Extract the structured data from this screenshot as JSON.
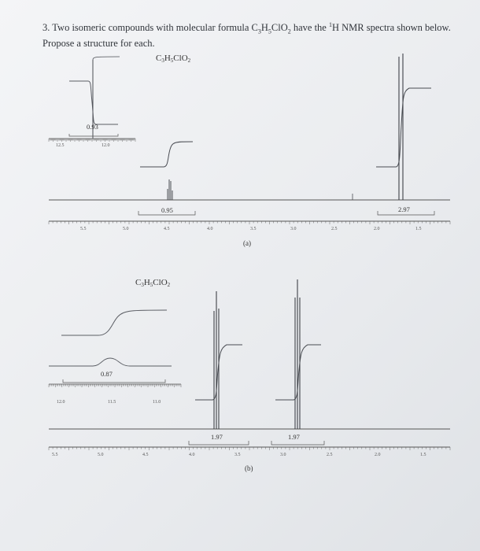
{
  "question": {
    "number": "3.",
    "text_part1": "Two isomeric compounds with molecular formula C",
    "sub1": "3",
    "text_part2": "H",
    "sub2": "5",
    "text_part3": "ClO",
    "sub3": "2",
    "text_part4": " have the ",
    "sup1": "1",
    "text_part5": "H NMR spectra shown below. Propose a structure for each."
  },
  "chart_data": [
    {
      "type": "line",
      "panel_label": "(a)",
      "formula": "C3H5ClO2",
      "xlabel": "",
      "ylabel": "",
      "x_ticks": [
        "5.5",
        "5.0",
        "4.5",
        "4.0",
        "3.5",
        "3.0",
        "2.5",
        "2.0",
        "1.5"
      ],
      "x_range": [
        5.8,
        1.2
      ],
      "peaks": [
        {
          "shift": 4.48,
          "height": 0.12,
          "multiplicity": "quartet"
        },
        {
          "shift": 1.72,
          "height": 1.0,
          "multiplicity": "doublet"
        }
      ],
      "integrals": [
        {
          "value": "0.95",
          "from": 4.6,
          "to": 4.35
        },
        {
          "value": "2.97",
          "from": 1.85,
          "to": 1.55
        }
      ],
      "inset": {
        "x_ticks": [
          "12.5",
          "12.0"
        ],
        "peak_shift": 12.1,
        "integral": "0.93"
      }
    },
    {
      "type": "line",
      "panel_label": "(b)",
      "formula": "C3H5ClO2",
      "xlabel": "",
      "ylabel": "",
      "x_ticks": [
        "5.5",
        "5.0",
        "4.5",
        "4.0",
        "3.5",
        "3.0",
        "2.5",
        "2.0",
        "1.5"
      ],
      "x_range": [
        5.6,
        1.2
      ],
      "peaks": [
        {
          "shift": 3.78,
          "height": 0.85,
          "multiplicity": "triplet"
        },
        {
          "shift": 2.98,
          "height": 0.85,
          "multiplicity": "triplet"
        }
      ],
      "integrals": [
        {
          "value": "1.97",
          "from": 3.95,
          "to": 3.55
        },
        {
          "value": "1.97",
          "from": 3.1,
          "to": 2.75
        }
      ],
      "inset": {
        "x_ticks": [
          "12.0",
          "11.5",
          "11.0"
        ],
        "peak_shift": 11.6,
        "integral": "0.87"
      }
    }
  ]
}
